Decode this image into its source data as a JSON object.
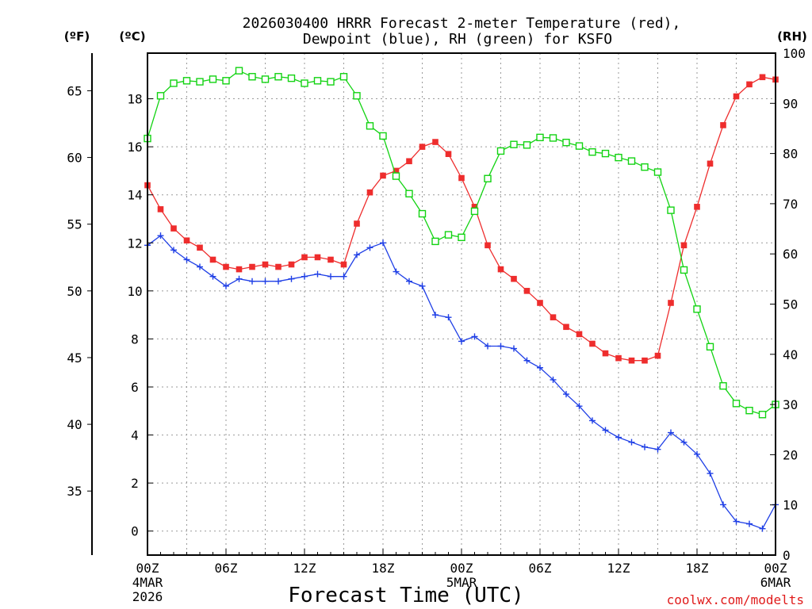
{
  "title": {
    "line1": "2026030400 HRRR Forecast 2-meter Temperature (red),",
    "line2": "Dewpoint (blue), RH (green) for KSFO"
  },
  "unit_labels": {
    "fahrenheit": "(ºF)",
    "celsius": "(ºC)",
    "rh": "(RH)"
  },
  "credit": "coolwx.com/modelts",
  "colors": {
    "temperature": "#ee2d2d",
    "dewpoint": "#1f3fe6",
    "rh": "#12d312"
  },
  "chart_data": {
    "type": "line",
    "title": "2026030400 HRRR Forecast 2-meter Temperature (red), Dewpoint (blue), RH (green) for KSFO",
    "xlabel": "Forecast Time (UTC)",
    "x_hours_range": [
      0,
      48
    ],
    "x_ticks": [
      {
        "hour": 0,
        "label": "00Z",
        "sub": [
          "4MAR",
          "2026"
        ]
      },
      {
        "hour": 6,
        "label": "06Z",
        "sub": []
      },
      {
        "hour": 12,
        "label": "12Z",
        "sub": []
      },
      {
        "hour": 18,
        "label": "18Z",
        "sub": []
      },
      {
        "hour": 24,
        "label": "00Z",
        "sub": [
          "5MAR"
        ]
      },
      {
        "hour": 30,
        "label": "06Z",
        "sub": []
      },
      {
        "hour": 36,
        "label": "12Z",
        "sub": []
      },
      {
        "hour": 42,
        "label": "18Z",
        "sub": []
      },
      {
        "hour": 48,
        "label": "00Z",
        "sub": [
          "6MAR"
        ]
      }
    ],
    "y_celsius": {
      "label": "(ºC)",
      "range": [
        -1,
        19.9
      ],
      "ticks": [
        0,
        2,
        4,
        6,
        8,
        10,
        12,
        14,
        16,
        18
      ]
    },
    "y_fahrenheit": {
      "label": "(ºF)",
      "ticks": [
        35,
        40,
        45,
        50,
        55,
        60,
        65
      ]
    },
    "y_rh": {
      "label": "(RH)",
      "range": [
        0,
        100
      ],
      "ticks": [
        0,
        10,
        20,
        30,
        40,
        50,
        60,
        70,
        80,
        90,
        100
      ]
    },
    "grid": true,
    "series": [
      {
        "name": "Temperature",
        "units": "C",
        "color": "#ee2d2d",
        "marker": "filled-square",
        "values": [
          14.4,
          13.4,
          12.6,
          12.1,
          11.8,
          11.3,
          11.0,
          10.9,
          11.0,
          11.1,
          11.0,
          11.1,
          11.4,
          11.4,
          11.3,
          11.1,
          12.8,
          14.1,
          14.8,
          15.0,
          15.4,
          16.0,
          16.2,
          15.7,
          14.7,
          13.5,
          11.9,
          10.9,
          10.5,
          10.0,
          9.5,
          8.9,
          8.5,
          8.2,
          7.8,
          7.4,
          7.2,
          7.1,
          7.1,
          7.3,
          9.5,
          11.9,
          13.5,
          15.3,
          16.9,
          18.1,
          18.6,
          18.9,
          18.8
        ]
      },
      {
        "name": "Dewpoint",
        "units": "C",
        "color": "#1f3fe6",
        "marker": "plus",
        "values": [
          11.9,
          12.3,
          11.7,
          11.3,
          11.0,
          10.6,
          10.2,
          10.5,
          10.4,
          10.4,
          10.4,
          10.5,
          10.6,
          10.7,
          10.6,
          10.6,
          11.5,
          11.8,
          12.0,
          10.8,
          10.4,
          10.2,
          9.0,
          8.9,
          7.9,
          8.1,
          7.7,
          7.7,
          7.6,
          7.1,
          6.8,
          6.3,
          5.7,
          5.2,
          4.6,
          4.2,
          3.9,
          3.7,
          3.5,
          3.4,
          4.1,
          3.7,
          3.2,
          2.4,
          1.1,
          0.4,
          0.3,
          0.1,
          1.1
        ]
      },
      {
        "name": "RH",
        "units": "%",
        "color": "#12d312",
        "marker": "hollow-square",
        "values": [
          83,
          91.5,
          94,
          94.5,
          94.3,
          94.8,
          94.5,
          96.5,
          95.3,
          94.8,
          95.3,
          95,
          94,
          94.5,
          94.3,
          95.3,
          91.5,
          85.5,
          83.5,
          75.5,
          72,
          68,
          62.5,
          63.8,
          63.3,
          68.5,
          75,
          80.5,
          81.8,
          81.7,
          83.2,
          83.1,
          82.2,
          81.5,
          80.3,
          80,
          79.2,
          78.5,
          77.3,
          76.3,
          68.7,
          56.8,
          49,
          41.5,
          33.7,
          30.2,
          28.8,
          28,
          30
        ]
      }
    ]
  }
}
